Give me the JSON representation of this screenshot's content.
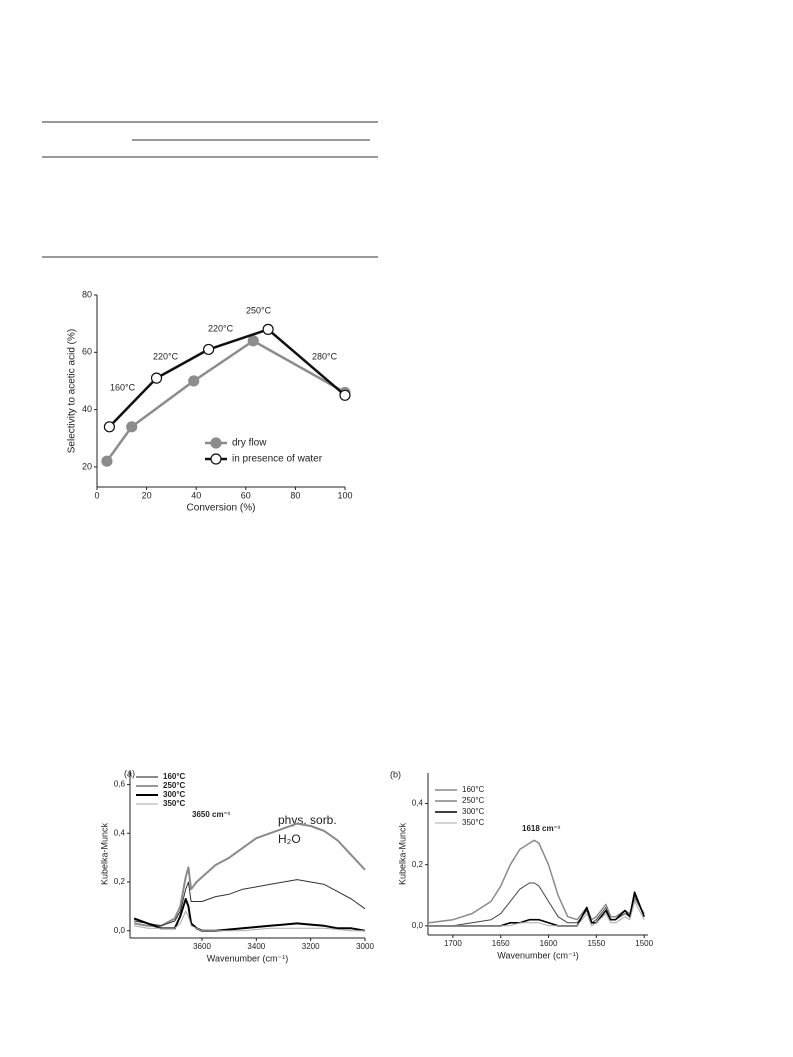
{
  "chart_data": [
    {
      "type": "line",
      "markers": "circle",
      "x_label": "Conversion (%)",
      "y_label": "Selectivity to acetic acid (%)",
      "xlim": [
        0,
        100
      ],
      "xticks": [
        0,
        20,
        40,
        60,
        80,
        100
      ],
      "ylim": [
        13,
        80
      ],
      "yticks": [
        20,
        40,
        60,
        80
      ],
      "annotations": [
        "160°C",
        "220°C",
        "220°C",
        "250°C",
        "280°C"
      ],
      "legend": "lower right",
      "series": [
        {
          "name": "dry flow",
          "color": "#8c8c8c",
          "marker_fill": "#8c8c8c",
          "x": [
            4,
            14,
            39,
            63,
            100
          ],
          "values": [
            22,
            34,
            50,
            64,
            46
          ]
        },
        {
          "name": "in presence of water",
          "color": "#111111",
          "marker_fill": "#ffffff",
          "x": [
            5,
            24,
            45,
            69,
            100
          ],
          "values": [
            34,
            51,
            61,
            68,
            45
          ]
        }
      ]
    },
    {
      "type": "line",
      "label": "(a)",
      "x_label": "Wavenumber (cm⁻¹)",
      "y_label": "Kubelka-Munck",
      "xlim": [
        3865,
        3000
      ],
      "xticks": [
        3600,
        3400,
        3200,
        3000
      ],
      "ylim": [
        -0.03,
        0.66
      ],
      "yticks": [
        {
          "value": 0,
          "label": "0,0"
        },
        {
          "value": 0.2,
          "label": "0,2"
        },
        {
          "value": 0.4,
          "label": "0,4"
        },
        {
          "value": 0.6,
          "label": "0,6"
        }
      ],
      "annotations": [
        "3650 cm⁻¹",
        "phys. sorb.",
        "H₂O"
      ],
      "legend": "upper left",
      "x": [
        3850,
        3800,
        3750,
        3700,
        3680,
        3660,
        3650,
        3640,
        3620,
        3600,
        3550,
        3500,
        3450,
        3400,
        3350,
        3300,
        3250,
        3200,
        3150,
        3100,
        3050,
        3000
      ],
      "series": [
        {
          "name": "160°C",
          "color": "#8a8a8a",
          "width": 2,
          "values": [
            0.03,
            0.02,
            0.02,
            0.05,
            0.1,
            0.22,
            0.26,
            0.17,
            0.2,
            0.22,
            0.27,
            0.3,
            0.34,
            0.38,
            0.4,
            0.42,
            0.44,
            0.43,
            0.41,
            0.37,
            0.31,
            0.25
          ]
        },
        {
          "name": "250°C",
          "color": "#333333",
          "width": 1,
          "values": [
            0.04,
            0.03,
            0.02,
            0.04,
            0.08,
            0.17,
            0.2,
            0.12,
            0.12,
            0.12,
            0.14,
            0.15,
            0.17,
            0.18,
            0.19,
            0.2,
            0.21,
            0.2,
            0.19,
            0.16,
            0.13,
            0.09
          ]
        },
        {
          "name": "300°C",
          "color": "#000000",
          "width": 2,
          "values": [
            0.05,
            0.03,
            0.01,
            0.01,
            0.06,
            0.13,
            0.1,
            0.03,
            0.01,
            0,
            0,
            0.005,
            0.01,
            0.015,
            0.02,
            0.025,
            0.03,
            0.025,
            0.02,
            0.01,
            0.01,
            0
          ]
        },
        {
          "name": "350°C",
          "color": "#aaaaaa",
          "width": 1,
          "values": [
            0.02,
            0.01,
            0.01,
            0.01,
            0.03,
            0.08,
            0.06,
            0.02,
            0.01,
            0,
            0,
            0,
            0,
            0.005,
            0.01,
            0.01,
            0.01,
            0.01,
            0.01,
            0.005,
            0,
            0
          ]
        }
      ]
    },
    {
      "type": "line",
      "label": "(b)",
      "x_label": "Wavenumber (cm⁻¹)",
      "y_label": "Kubelka-Munck",
      "xlim": [
        1726,
        1496
      ],
      "xticks": [
        1700,
        1650,
        1600,
        1550,
        1500
      ],
      "ylim": [
        -0.03,
        0.5
      ],
      "yticks": [
        {
          "value": 0,
          "label": "0,0"
        },
        {
          "value": 0.2,
          "label": "0,2"
        },
        {
          "value": 0.4,
          "label": "0,4"
        }
      ],
      "annotations": [
        "1618 cm⁻¹"
      ],
      "legend": "upper left",
      "x": [
        1725,
        1700,
        1680,
        1660,
        1650,
        1640,
        1630,
        1620,
        1615,
        1610,
        1600,
        1590,
        1580,
        1570,
        1560,
        1555,
        1550,
        1540,
        1535,
        1530,
        1520,
        1515,
        1510,
        1500
      ],
      "series": [
        {
          "name": "160°C",
          "color": "#8a8a8a",
          "width": 1.5,
          "values": [
            0.01,
            0.02,
            0.04,
            0.08,
            0.13,
            0.2,
            0.25,
            0.27,
            0.28,
            0.27,
            0.2,
            0.1,
            0.03,
            0.02,
            0.06,
            0.02,
            0.03,
            0.07,
            0.03,
            0.03,
            0.05,
            0.04,
            0.09,
            0.04
          ]
        },
        {
          "name": "250°C",
          "color": "#444444",
          "width": 1,
          "values": [
            0,
            0,
            0.01,
            0.02,
            0.04,
            0.08,
            0.12,
            0.14,
            0.14,
            0.13,
            0.08,
            0.03,
            0.01,
            0.01,
            0.05,
            0.01,
            0.02,
            0.06,
            0.02,
            0.02,
            0.04,
            0.03,
            0.1,
            0.03
          ]
        },
        {
          "name": "300°C",
          "color": "#000000",
          "width": 1.6,
          "values": [
            0,
            0,
            0,
            0,
            0,
            0.01,
            0.01,
            0.02,
            0.02,
            0.02,
            0.01,
            0,
            0,
            0,
            0.06,
            0.01,
            0.01,
            0.05,
            0.02,
            0.02,
            0.05,
            0.03,
            0.11,
            0.03
          ]
        },
        {
          "name": "350°C",
          "color": "#aaaaaa",
          "width": 1,
          "values": [
            0,
            0,
            0,
            0,
            0,
            0,
            0.01,
            0.01,
            0.01,
            0.01,
            0,
            0,
            0,
            0,
            0.04,
            0,
            0.01,
            0.04,
            0.01,
            0.01,
            0.03,
            0.02,
            0.08,
            0.02
          ]
        }
      ]
    }
  ]
}
